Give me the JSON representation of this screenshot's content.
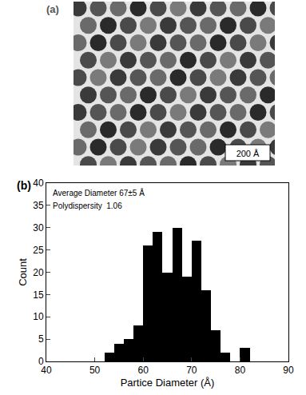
{
  "panel_a": {
    "label": "(a)",
    "scale_bar": "200 Å"
  },
  "chart_data": {
    "type": "histogram",
    "panel_label": "(b)",
    "x_label": "Partice Diameter (Å)",
    "y_label": "Count",
    "annotations": [
      "Average Diameter 67±5 Å",
      "Polydispersity  1.06"
    ],
    "bins": [
      52,
      54,
      56,
      58,
      60,
      62,
      64,
      66,
      68,
      70,
      72,
      74,
      76,
      78,
      80,
      82
    ],
    "counts": [
      2,
      4,
      5,
      8,
      26,
      29,
      20,
      30,
      19,
      27,
      16,
      7,
      2,
      0,
      3
    ],
    "color": "#000000",
    "xlim": [
      40,
      90
    ],
    "xticks": [
      40,
      50,
      60,
      70,
      80,
      90
    ],
    "ylim": [
      0,
      40
    ],
    "yticks": [
      0,
      5,
      10,
      15,
      20,
      25,
      30,
      35,
      40
    ],
    "grid": false
  }
}
